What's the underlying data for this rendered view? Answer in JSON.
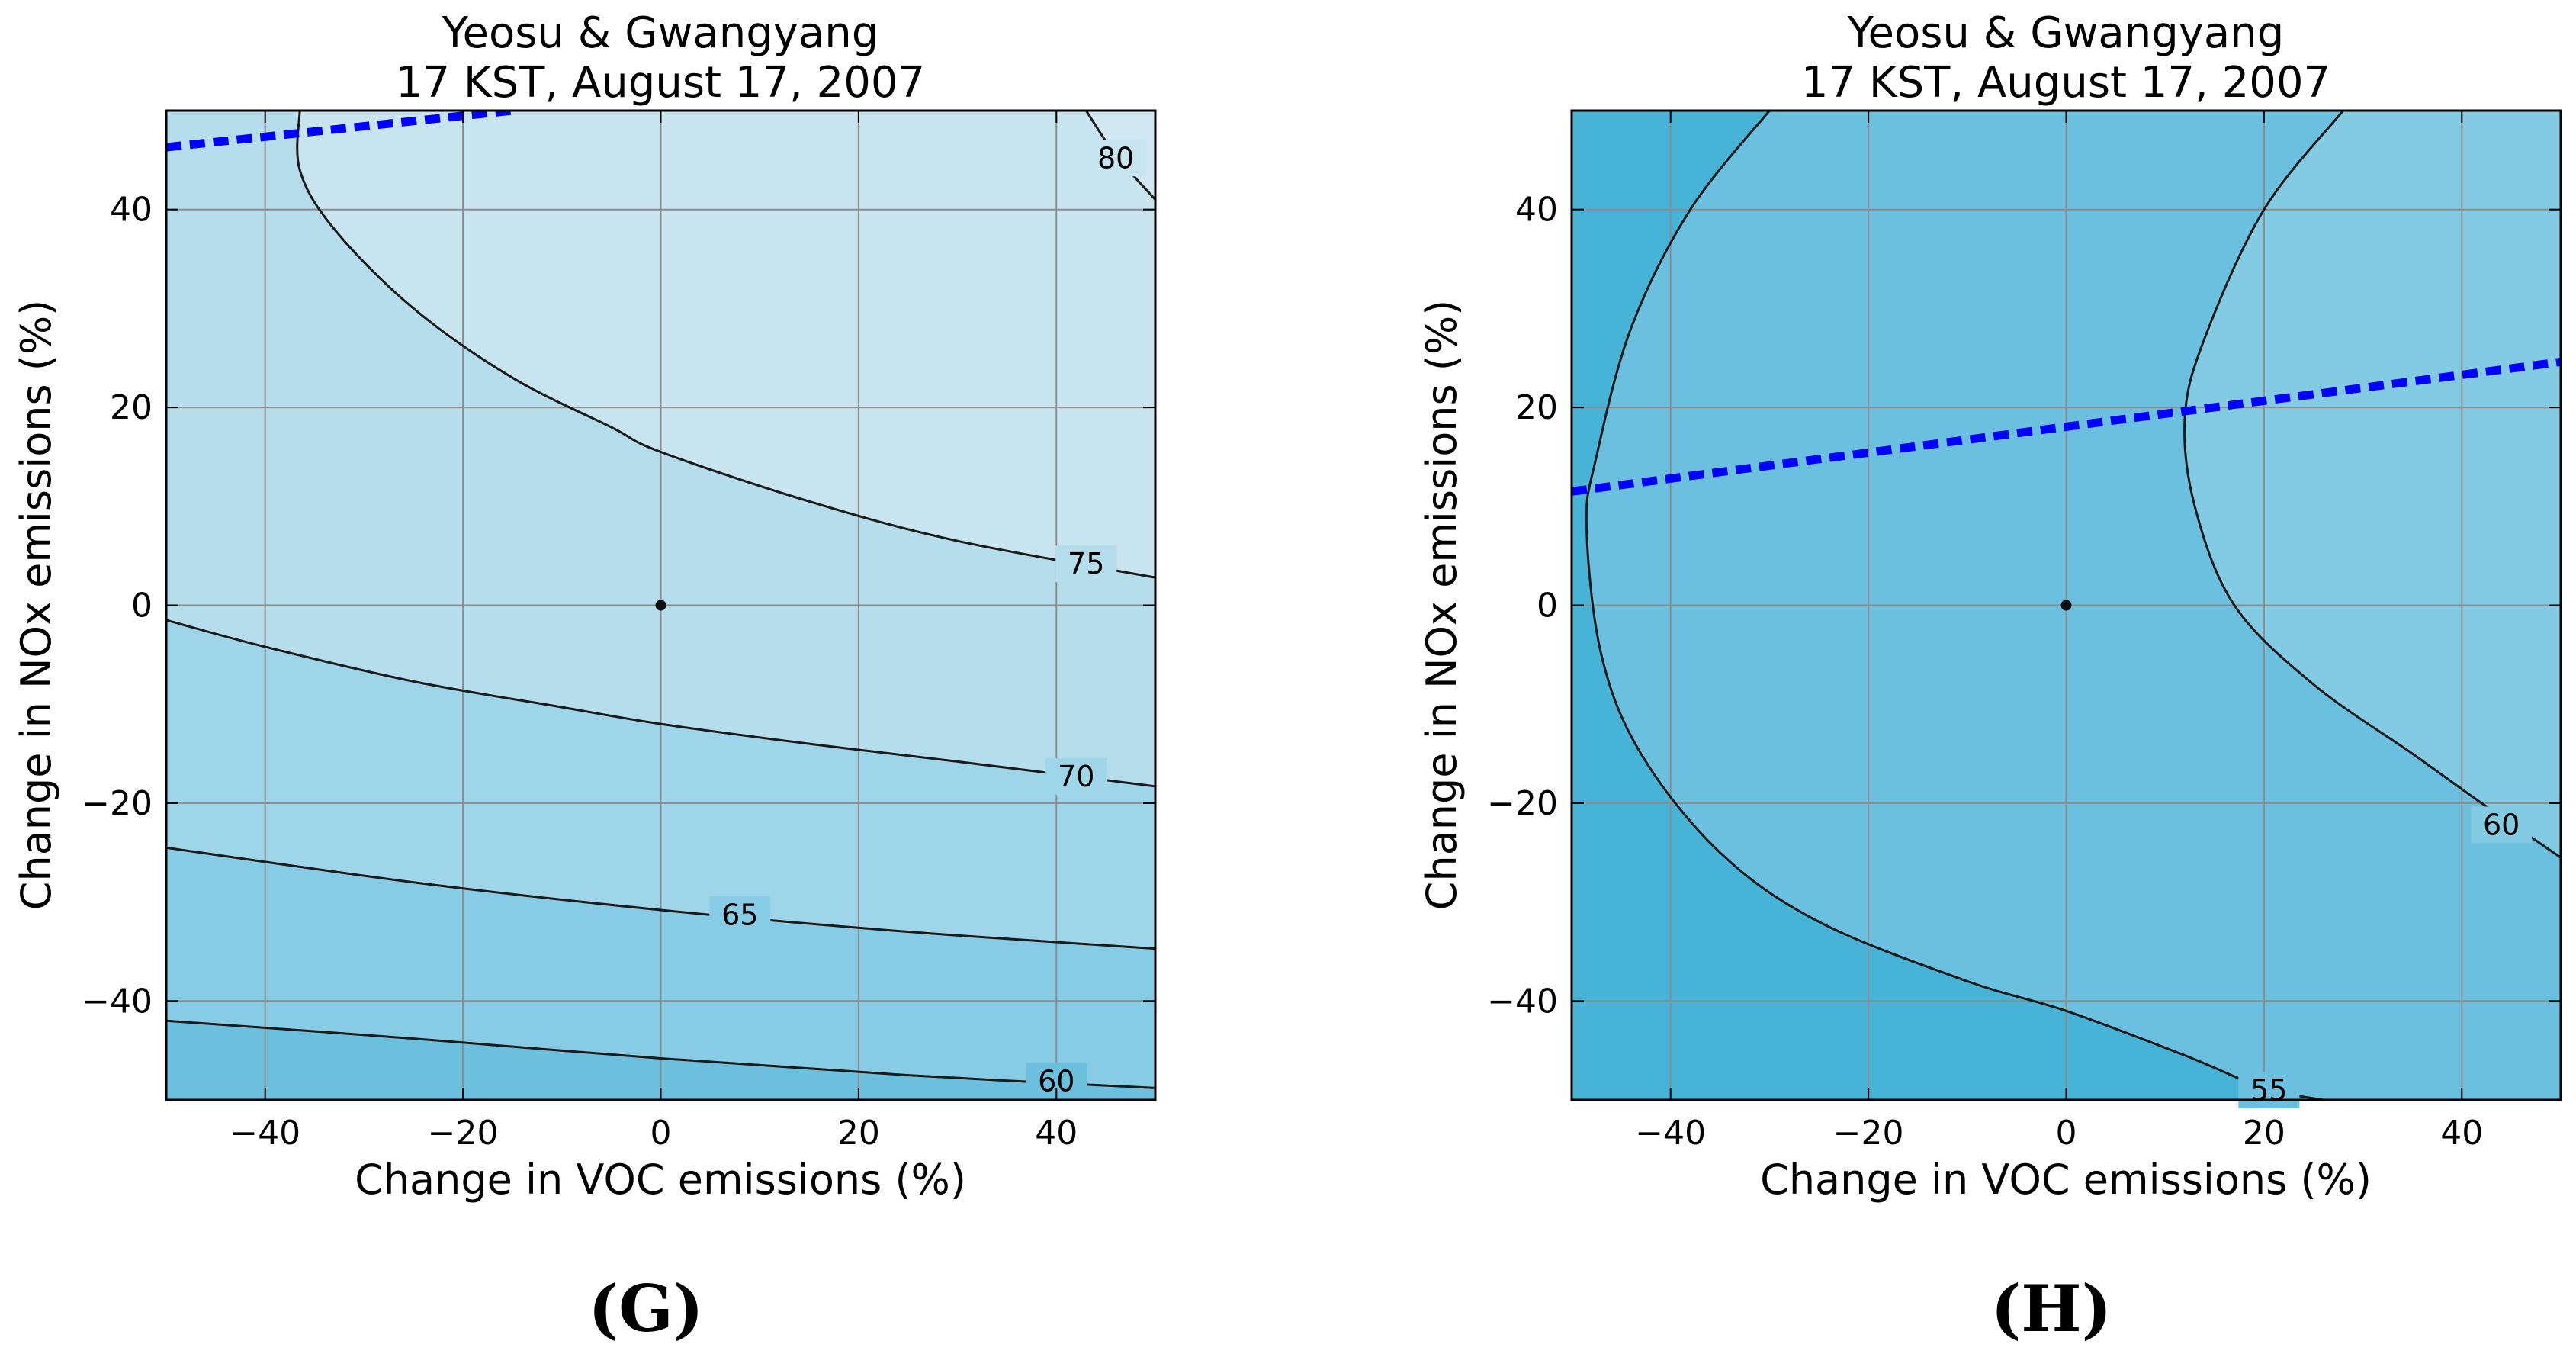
{
  "chart_data": [
    {
      "type": "contour",
      "panel": "(G)",
      "title_line1": "Yeosu & Gwangyang",
      "title_line2": "17 KST, August 17, 2007",
      "xlabel": "Change in VOC emissions (%)",
      "ylabel": "Change in NOx emissions (%)",
      "xlim": [
        -50,
        50
      ],
      "ylim": [
        -50,
        50
      ],
      "xticks": [
        -40,
        -20,
        0,
        20,
        40
      ],
      "yticks": [
        -40,
        -20,
        0,
        20,
        40
      ],
      "grid": true,
      "fills": [
        "#6cc0de",
        "#87cce4",
        "#9fd5e9",
        "#b5ddec",
        "#c7e4ef"
      ],
      "contours": [
        {
          "level": "60",
          "points": [
            [
              -50,
              -42
            ],
            [
              -25,
              -43.8
            ],
            [
              0,
              -45.8
            ],
            [
              25,
              -47.5
            ],
            [
              50,
              -48.8
            ]
          ],
          "label_at": [
            40,
            -48.1
          ]
        },
        {
          "level": "65",
          "points": [
            [
              -50,
              -24.5
            ],
            [
              -25,
              -28
            ],
            [
              0,
              -30.8
            ],
            [
              25,
              -33
            ],
            [
              50,
              -34.7
            ]
          ],
          "label_at": [
            8,
            -31.3
          ]
        },
        {
          "level": "70",
          "points": [
            [
              -50,
              -1.5
            ],
            [
              -40,
              -4.2
            ],
            [
              -25,
              -7.7
            ],
            [
              -10,
              -10.3
            ],
            [
              0,
              -12
            ],
            [
              15,
              -14
            ],
            [
              30,
              -15.8
            ],
            [
              50,
              -18.3
            ]
          ],
          "label_at": [
            42,
            -17.3
          ]
        },
        {
          "level": "75",
          "points": [
            [
              -36.5,
              50
            ],
            [
              -36.5,
              44
            ],
            [
              -33,
              38
            ],
            [
              -25,
              30
            ],
            [
              -15,
              23
            ],
            [
              -5,
              18
            ],
            [
              0,
              15.5
            ],
            [
              15,
              10.5
            ],
            [
              30,
              6.5
            ],
            [
              50,
              2.8
            ]
          ],
          "label_at": [
            43,
            4.2
          ]
        },
        {
          "level": "80",
          "points": [
            [
              43,
              50
            ],
            [
              46,
              45.5
            ],
            [
              50,
              41
            ]
          ],
          "label_at": [
            46,
            45.2
          ]
        }
      ],
      "ridge_line": {
        "color": "#0000ff",
        "points": [
          [
            -50,
            46.3
          ],
          [
            -15,
            50
          ]
        ]
      },
      "base_point": {
        "x": 0,
        "y": 0
      }
    },
    {
      "type": "contour",
      "panel": "(H)",
      "title_line1": "Yeosu & Gwangyang",
      "title_line2": "17 KST, August 17, 2007",
      "xlabel": "Change in VOC emissions (%)",
      "ylabel": "Change in NOx emissions (%)",
      "xlim": [
        -50,
        50
      ],
      "ylim": [
        -50,
        50
      ],
      "xticks": [
        -40,
        -20,
        0,
        20,
        40
      ],
      "yticks": [
        -40,
        -20,
        0,
        20,
        40
      ],
      "grid": true,
      "fills": [
        "#47b3d7",
        "#6bc0df",
        "#83cbe3"
      ],
      "contours": [
        {
          "level": "55",
          "points": [
            [
              -30,
              50
            ],
            [
              -38,
              40
            ],
            [
              -44,
              28
            ],
            [
              -47.5,
              15
            ],
            [
              -48.5,
              8
            ],
            [
              -47,
              -5
            ],
            [
              -43,
              -15
            ],
            [
              -35,
              -25
            ],
            [
              -25,
              -32
            ],
            [
              -10,
              -38
            ],
            [
              0,
              -41
            ],
            [
              12,
              -45.5
            ],
            [
              20,
              -48.8
            ],
            [
              26,
              -50
            ]
          ],
          "label_at": [
            20.5,
            -49
          ]
        },
        {
          "level": "60",
          "points": [
            [
              28,
              50
            ],
            [
              20,
              40
            ],
            [
              14,
              27
            ],
            [
              12,
              19
            ],
            [
              13,
              10
            ],
            [
              17,
              0
            ],
            [
              25,
              -8
            ],
            [
              35,
              -15
            ],
            [
              42,
              -20
            ],
            [
              50,
              -25.5
            ]
          ],
          "label_at": [
            44,
            -22.2
          ]
        }
      ],
      "ridge_line": {
        "color": "#0000ff",
        "points": [
          [
            -50,
            11.5
          ],
          [
            50,
            24.6
          ]
        ]
      },
      "base_point": {
        "x": 0,
        "y": 0
      }
    }
  ]
}
